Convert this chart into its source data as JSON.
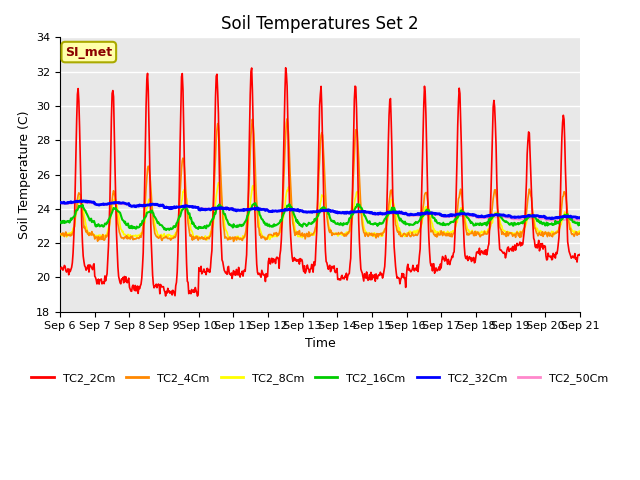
{
  "title": "Soil Temperatures Set 2",
  "xlabel": "Time",
  "ylabel": "Soil Temperature (C)",
  "ylim": [
    18,
    34
  ],
  "yticks": [
    18,
    20,
    22,
    24,
    26,
    28,
    30,
    32,
    34
  ],
  "x_labels": [
    "Sep 6",
    "Sep 7",
    "Sep 8",
    "Sep 9",
    "Sep 10",
    "Sep 11",
    "Sep 12",
    "Sep 13",
    "Sep 14",
    "Sep 15",
    "Sep 16",
    "Sep 17",
    "Sep 18",
    "Sep 19",
    "Sep 20",
    "Sep 21"
  ],
  "series_colors": {
    "TC2_2Cm": "#FF0000",
    "TC2_4Cm": "#FF8800",
    "TC2_8Cm": "#FFFF00",
    "TC2_16Cm": "#00CC00",
    "TC2_32Cm": "#0000FF",
    "TC2_50Cm": "#FF88CC"
  },
  "series_linewidths": {
    "TC2_2Cm": 1.2,
    "TC2_4Cm": 1.2,
    "TC2_8Cm": 1.2,
    "TC2_16Cm": 1.5,
    "TC2_32Cm": 2.0,
    "TC2_50Cm": 1.2
  },
  "annotation_text": "SI_met",
  "annotation_color": "#8B0000",
  "annotation_bg": "#FFFFAA",
  "annotation_border": "#AAAA00",
  "background_color": "#E8E8E8",
  "grid_color": "#FFFFFF",
  "title_fontsize": 12,
  "axis_label_fontsize": 9,
  "tick_fontsize": 8,
  "legend_fontsize": 8,
  "num_points_per_day": 48
}
